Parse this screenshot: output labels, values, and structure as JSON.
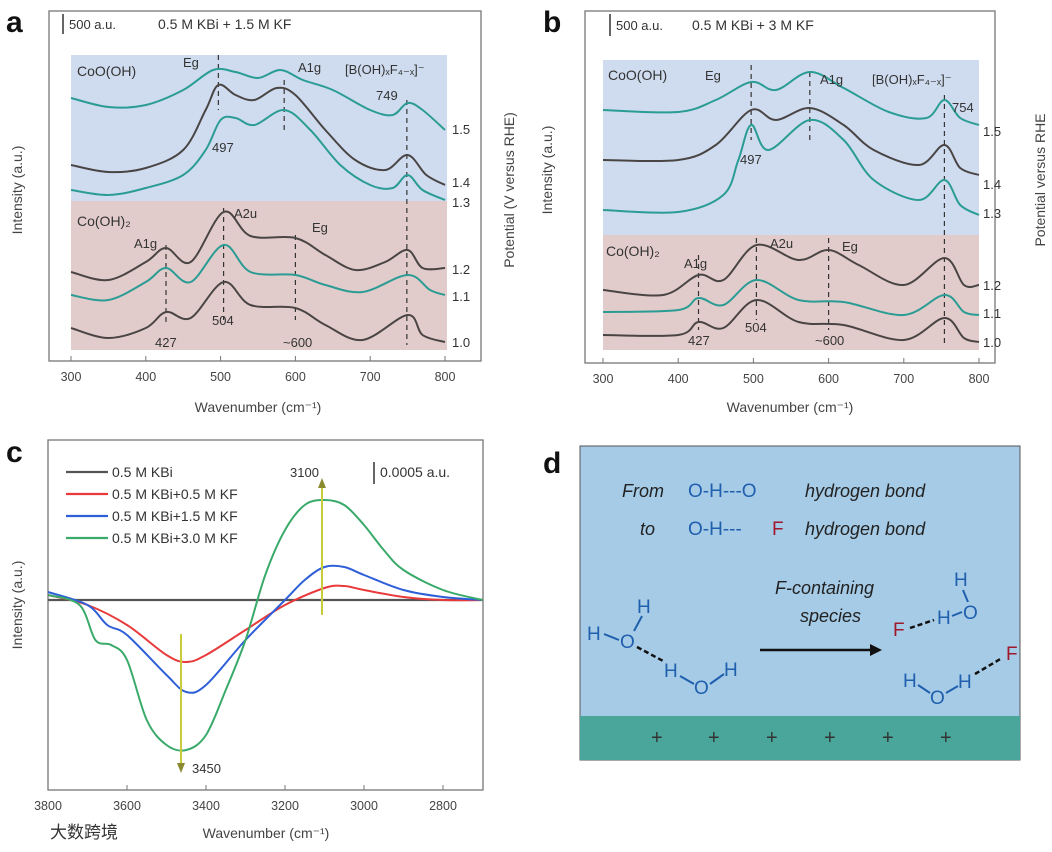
{
  "colors": {
    "teal": "#2a9c94",
    "dark": "#4a4545",
    "blue_band": "#cfdcef",
    "pink_band": "#e2cccb",
    "c_black": "#555555",
    "c_red": "#e83a3a",
    "c_blue": "#2f5fd8",
    "c_green": "#3aaa6a",
    "arrow": "#c8cc3a",
    "d_bg": "#a6cbe6",
    "d_surface": "#4aa69a"
  },
  "chart_data": [
    {
      "panel": "a",
      "type": "line",
      "title": "0.5 M KBi + 1.5 M KF",
      "scale_bar": "500 a.u.",
      "xlabel": "Wavenumber (cm⁻¹)",
      "ylabel": "Intensity (a.u.)",
      "y2label": "Potential (V versus RHE)",
      "xlim": [
        300,
        800
      ],
      "ylim": [
        0,
        348
      ],
      "xticks": [
        "300",
        "400",
        "500",
        "600",
        "700",
        "800"
      ],
      "regions": [
        {
          "label": "CoO(OH)"
        },
        {
          "label": "Co(OH)₂"
        }
      ],
      "annotations": {
        "eg_top": "Eg",
        "a1g_top": "A1g",
        "borate": "[B(OH)ₓF₄₋ₓ]⁻",
        "p749": "749",
        "p497": "497",
        "a2u": "A2u",
        "eg_bot": "Eg",
        "a1g_bot": "A1g",
        "p504": "504",
        "p427": "427",
        "p600": "~600"
      },
      "dashed_lines": [
        497,
        585,
        749,
        427,
        504,
        600
      ],
      "series": [
        {
          "name": "1.5",
          "color": "teal",
          "points": [
            [
              300,
              262
            ],
            [
              350,
              253
            ],
            [
              400,
              255
            ],
            [
              450,
              270
            ],
            [
              490,
              290
            ],
            [
              520,
              288
            ],
            [
              550,
              282
            ],
            [
              580,
              290
            ],
            [
              610,
              280
            ],
            [
              650,
              270
            ],
            [
              700,
              250
            ],
            [
              730,
              245
            ],
            [
              750,
              257
            ],
            [
              770,
              250
            ],
            [
              800,
              230
            ]
          ]
        },
        {
          "name": "1.4",
          "color": "dark",
          "points": [
            [
              300,
              195
            ],
            [
              350,
              188
            ],
            [
              400,
              192
            ],
            [
              450,
              210
            ],
            [
              480,
              250
            ],
            [
              497,
              275
            ],
            [
              520,
              265
            ],
            [
              545,
              260
            ],
            [
              575,
              272
            ],
            [
              600,
              265
            ],
            [
              640,
              230
            ],
            [
              680,
              200
            ],
            [
              720,
              190
            ],
            [
              750,
              205
            ],
            [
              775,
              185
            ],
            [
              800,
              175
            ]
          ]
        },
        {
          "name": "1.3",
          "color": "teal",
          "points": [
            [
              300,
              170
            ],
            [
              350,
              165
            ],
            [
              400,
              172
            ],
            [
              450,
              185
            ],
            [
              480,
              210
            ],
            [
              500,
              240
            ],
            [
              520,
              242
            ],
            [
              545,
              235
            ],
            [
              585,
              250
            ],
            [
              620,
              230
            ],
            [
              660,
              195
            ],
            [
              700,
              175
            ],
            [
              730,
              172
            ],
            [
              750,
              185
            ],
            [
              770,
              170
            ],
            [
              800,
              160
            ]
          ]
        },
        {
          "name": "1.2",
          "color": "dark",
          "points": [
            [
              300,
              88
            ],
            [
              350,
              80
            ],
            [
              400,
              98
            ],
            [
              427,
              112
            ],
            [
              460,
              98
            ],
            [
              504,
              148
            ],
            [
              540,
              124
            ],
            [
              600,
              122
            ],
            [
              640,
              105
            ],
            [
              680,
              90
            ],
            [
              720,
              98
            ],
            [
              750,
              110
            ],
            [
              770,
              92
            ],
            [
              800,
              92
            ]
          ]
        },
        {
          "name": "1.1",
          "color": "teal",
          "points": [
            [
              300,
              65
            ],
            [
              350,
              60
            ],
            [
              400,
              78
            ],
            [
              427,
              92
            ],
            [
              460,
              78
            ],
            [
              504,
              115
            ],
            [
              540,
              88
            ],
            [
              600,
              85
            ],
            [
              640,
              75
            ],
            [
              690,
              68
            ],
            [
              750,
              85
            ],
            [
              780,
              70
            ],
            [
              800,
              65
            ]
          ]
        },
        {
          "name": "1.0",
          "color": "dark",
          "points": [
            [
              300,
              32
            ],
            [
              350,
              22
            ],
            [
              400,
              32
            ],
            [
              427,
              48
            ],
            [
              460,
              42
            ],
            [
              504,
              78
            ],
            [
              540,
              55
            ],
            [
              600,
              52
            ],
            [
              640,
              35
            ],
            [
              690,
              20
            ],
            [
              750,
              45
            ],
            [
              770,
              25
            ],
            [
              800,
              18
            ]
          ]
        }
      ]
    },
    {
      "panel": "b",
      "type": "line",
      "title": "0.5 M KBi + 3 M KF",
      "scale_bar": "500 a.u.",
      "xlabel": "Wavenumber (cm⁻¹)",
      "ylabel": "Intensity (a.u.)",
      "y2label": "Potential versus RHE",
      "xlim": [
        300,
        800
      ],
      "ylim": [
        0,
        348
      ],
      "xticks": [
        "300",
        "400",
        "500",
        "600",
        "700",
        "800"
      ],
      "regions": [
        {
          "label": "CoO(OH)"
        },
        {
          "label": "Co(OH)₂"
        }
      ],
      "annotations": {
        "eg_top": "Eg",
        "a1g_top": "A1g",
        "borate": "[B(OH)ₓF₄₋ₓ]⁻",
        "p754": "754",
        "p497": "497",
        "a2u": "A2u",
        "eg_bot": "Eg",
        "a1g_bot": "A1g",
        "p504": "504",
        "p427": "427",
        "p600": "~600"
      },
      "dashed_lines": [
        497,
        575,
        754,
        427,
        504,
        600
      ],
      "series": [
        {
          "name": "1.5",
          "color": "teal",
          "points": [
            [
              300,
              250
            ],
            [
              400,
              248
            ],
            [
              450,
              260
            ],
            [
              497,
              278
            ],
            [
              530,
              270
            ],
            [
              575,
              288
            ],
            [
              620,
              272
            ],
            [
              680,
              248
            ],
            [
              730,
              242
            ],
            [
              754,
              260
            ],
            [
              775,
              242
            ],
            [
              800,
              235
            ]
          ]
        },
        {
          "name": "1.4",
          "color": "dark",
          "points": [
            [
              300,
              200
            ],
            [
              400,
              200
            ],
            [
              450,
              215
            ],
            [
              497,
              250
            ],
            [
              530,
              240
            ],
            [
              575,
              252
            ],
            [
              620,
              235
            ],
            [
              660,
              210
            ],
            [
              720,
              195
            ],
            [
              754,
              215
            ],
            [
              775,
              192
            ],
            [
              800,
              185
            ]
          ]
        },
        {
          "name": "1.3",
          "color": "teal",
          "points": [
            [
              300,
              150
            ],
            [
              400,
              148
            ],
            [
              460,
              165
            ],
            [
              480,
              200
            ],
            [
              497,
              235
            ],
            [
              520,
              210
            ],
            [
              575,
              240
            ],
            [
              620,
              220
            ],
            [
              660,
              180
            ],
            [
              720,
              160
            ],
            [
              754,
              180
            ],
            [
              775,
              155
            ],
            [
              800,
              145
            ]
          ]
        },
        {
          "name": "1.2",
          "color": "dark",
          "points": [
            [
              300,
              70
            ],
            [
              380,
              65
            ],
            [
              427,
              85
            ],
            [
              460,
              80
            ],
            [
              504,
              115
            ],
            [
              560,
              100
            ],
            [
              600,
              110
            ],
            [
              640,
              95
            ],
            [
              700,
              75
            ],
            [
              754,
              102
            ],
            [
              780,
              75
            ],
            [
              800,
              75
            ]
          ]
        },
        {
          "name": "1.1",
          "color": "teal",
          "points": [
            [
              300,
              48
            ],
            [
              400,
              50
            ],
            [
              427,
              62
            ],
            [
              460,
              55
            ],
            [
              504,
              80
            ],
            [
              560,
              60
            ],
            [
              620,
              58
            ],
            [
              700,
              45
            ],
            [
              754,
              65
            ],
            [
              780,
              48
            ],
            [
              800,
              45
            ]
          ]
        },
        {
          "name": "1.0",
          "color": "dark",
          "points": [
            [
              300,
              25
            ],
            [
              400,
              25
            ],
            [
              427,
              38
            ],
            [
              460,
              32
            ],
            [
              504,
              60
            ],
            [
              560,
              38
            ],
            [
              620,
              35
            ],
            [
              700,
              20
            ],
            [
              754,
              42
            ],
            [
              780,
              22
            ],
            [
              800,
              18
            ]
          ]
        }
      ]
    },
    {
      "panel": "c",
      "type": "line",
      "scale_bar": "0.0005 a.u.",
      "xlabel": "Wavenumber (cm⁻¹)",
      "ylabel": "Intensity (a.u.)",
      "xlim": [
        3800,
        2700
      ],
      "ylim": [
        -190,
        160
      ],
      "xticks": [
        "3800",
        "3600",
        "3400",
        "3200",
        "3000",
        "2800"
      ],
      "legend_position": "top-left",
      "annotations": {
        "peak_up": "3100",
        "peak_down": "3450"
      },
      "series": [
        {
          "name": "0.5 M KBi",
          "color": "c_black",
          "points": [
            [
              3800,
              0
            ],
            [
              2700,
              0
            ]
          ]
        },
        {
          "name": "0.5 M KBi+0.5 M KF",
          "color": "c_red",
          "points": [
            [
              3800,
              5
            ],
            [
              3700,
              -5
            ],
            [
              3600,
              -25
            ],
            [
              3500,
              -55
            ],
            [
              3450,
              -62
            ],
            [
              3400,
              -55
            ],
            [
              3300,
              -30
            ],
            [
              3200,
              -5
            ],
            [
              3100,
              12
            ],
            [
              3050,
              14
            ],
            [
              3000,
              10
            ],
            [
              2900,
              3
            ],
            [
              2800,
              0
            ],
            [
              2700,
              0
            ]
          ]
        },
        {
          "name": "0.5 M KBi+1.5 M KF",
          "color": "c_blue",
          "points": [
            [
              3800,
              8
            ],
            [
              3700,
              -5
            ],
            [
              3650,
              -25
            ],
            [
              3600,
              -35
            ],
            [
              3500,
              -75
            ],
            [
              3450,
              -92
            ],
            [
              3400,
              -85
            ],
            [
              3300,
              -40
            ],
            [
              3200,
              0
            ],
            [
              3150,
              20
            ],
            [
              3100,
              33
            ],
            [
              3050,
              33
            ],
            [
              3000,
              25
            ],
            [
              2900,
              10
            ],
            [
              2800,
              3
            ],
            [
              2700,
              0
            ]
          ]
        },
        {
          "name": "0.5 M KBi+3.0 M KF",
          "color": "c_green",
          "points": [
            [
              3800,
              5
            ],
            [
              3720,
              -5
            ],
            [
              3680,
              -40
            ],
            [
              3640,
              -45
            ],
            [
              3600,
              -60
            ],
            [
              3550,
              -120
            ],
            [
              3500,
              -145
            ],
            [
              3450,
              -150
            ],
            [
              3400,
              -135
            ],
            [
              3350,
              -90
            ],
            [
              3300,
              -40
            ],
            [
              3250,
              25
            ],
            [
              3200,
              70
            ],
            [
              3150,
              95
            ],
            [
              3100,
              100
            ],
            [
              3050,
              95
            ],
            [
              3000,
              75
            ],
            [
              2950,
              50
            ],
            [
              2900,
              30
            ],
            [
              2800,
              10
            ],
            [
              2700,
              0
            ]
          ]
        }
      ]
    }
  ],
  "panel_labels": {
    "a": "a",
    "b": "b",
    "c": "c",
    "d": "d"
  },
  "panel_d": {
    "line1_from": "From",
    "line1_bond": "O-H---O",
    "line1_tail": "hydrogen bond",
    "line2_to": "to",
    "line2_bond": "O-H---",
    "line2_F": "F",
    "line2_tail": "hydrogen bond",
    "arrow_label_1": "F-containing",
    "arrow_label_2": "species",
    "H": "H",
    "O": "O",
    "F": "F",
    "plus": "+"
  },
  "watermark": "大数跨境"
}
